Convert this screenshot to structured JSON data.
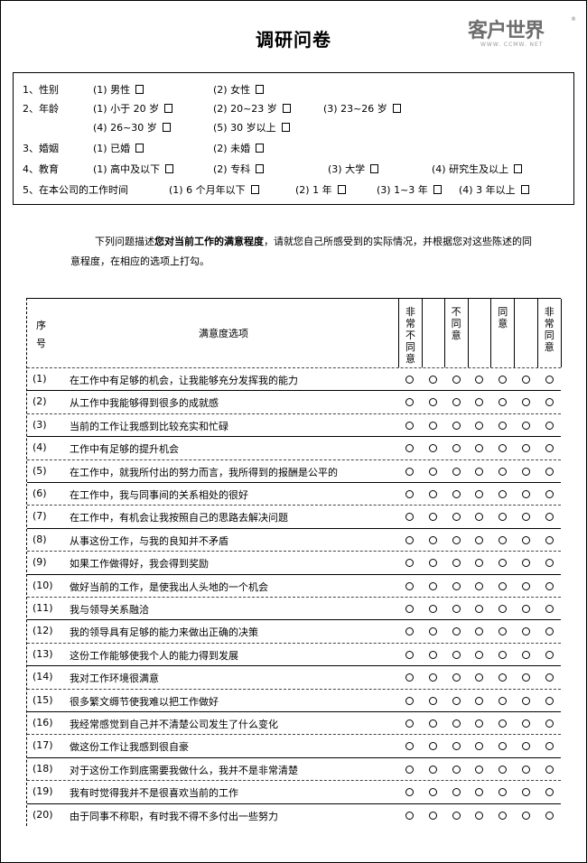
{
  "title": "调研问卷",
  "logo": {
    "text": "客户世界",
    "url_text": "WWW. CCMW. NET",
    "reg": "®"
  },
  "demographics": [
    {
      "label": "1、性别",
      "options": [
        "(1) 男性",
        "(2) 女性"
      ]
    },
    {
      "label": "2、年龄",
      "options": [
        "(1) 小于 20 岁",
        "(2) 20~23 岁",
        "(3) 23~26 岁",
        "(4) 26~30 岁",
        "(5) 30 岁以上"
      ]
    },
    {
      "label": "3、婚姻",
      "options": [
        "(1) 已婚",
        "(2) 未婚"
      ]
    },
    {
      "label": "4、教育",
      "options": [
        "(1) 高中及以下",
        "(2) 专科",
        "(3) 大学",
        "(4) 研究生及以上"
      ]
    },
    {
      "label": "5、在本公司的工作时间",
      "options": [
        "(1) 6 个月年以下",
        "(2) 1 年",
        "(3) 1~3 年",
        "(4) 3 年以上"
      ]
    }
  ],
  "intro": {
    "part1": "下列问题描述",
    "bold": "您对当前工作的满意程度",
    "part2": "，请就您自己所感受到的实际情况，并根据您对这些陈述的同意程度，在相应的选项上打勾。"
  },
  "table": {
    "seq_header": "序号",
    "item_header": "满意度选项",
    "scale_headers": [
      "非常不同意",
      "",
      "不同意",
      "",
      "同意",
      "",
      "非常同意"
    ],
    "items": [
      {
        "no": "(1)",
        "text": "在工作中有足够的机会，让我能够充分发挥我的能力"
      },
      {
        "no": "(2)",
        "text": "从工作中我能够得到很多的成就感"
      },
      {
        "no": "(3)",
        "text": "当前的工作让我感到比较充实和忙碌"
      },
      {
        "no": "(4)",
        "text": "工作中有足够的提升机会"
      },
      {
        "no": "(5)",
        "text": "在工作中，就我所付出的努力而言，我所得到的报酬是公平的"
      },
      {
        "no": "(6)",
        "text": "在工作中，我与同事间的关系相处的很好"
      },
      {
        "no": "(7)",
        "text": "在工作中，有机会让我按照自己的思路去解决问题"
      },
      {
        "no": "(8)",
        "text": "从事这份工作，与我的良知并不矛盾"
      },
      {
        "no": "(9)",
        "text": "如果工作做得好，我会得到奖励"
      },
      {
        "no": "(10)",
        "text": "做好当前的工作，是使我出人头地的一个机会"
      },
      {
        "no": "(11)",
        "text": "我与领导关系融洽"
      },
      {
        "no": "(12)",
        "text": "我的领导具有足够的能力来做出正确的决策"
      },
      {
        "no": "(13)",
        "text": "这份工作能够使我个人的能力得到发展"
      },
      {
        "no": "(14)",
        "text": "我对工作环境很满意"
      },
      {
        "no": "(15)",
        "text": "很多繁文缛节使我难以把工作做好"
      },
      {
        "no": "(16)",
        "text": "我经常感觉到自己并不清楚公司发生了什么变化"
      },
      {
        "no": "(17)",
        "text": "做这份工作让我感到很自豪"
      },
      {
        "no": "(18)",
        "text": "对于这份工作到底需要我做什么，我并不是非常清楚"
      },
      {
        "no": "(19)",
        "text": "我有时觉得我并不是很喜欢当前的工作"
      },
      {
        "no": "(20)",
        "text": "由于同事不称职，有时我不得不多付出一些努力"
      }
    ]
  }
}
